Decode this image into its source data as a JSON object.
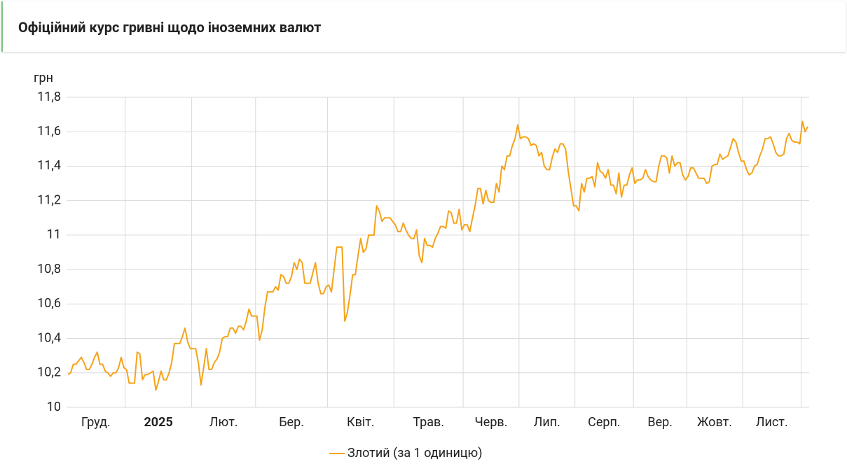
{
  "header": {
    "title": "Офіційний курс гривні щодо іноземних валют"
  },
  "chart_data": {
    "type": "line",
    "y_label": "грн",
    "categories": [
      "Груд.",
      "2025",
      "Лют.",
      "Бер.",
      "Квіт.",
      "Трав.",
      "Черв.",
      "Лип.",
      "Серп.",
      "Вер.",
      "Жовт.",
      "Лист.",
      null
    ],
    "ylim": [
      10,
      11.8
    ],
    "yticks": [
      10,
      {
        "value": 10.2,
        "label": "10,2"
      },
      {
        "value": 10.4,
        "label": "10,4"
      },
      {
        "value": 10.6,
        "label": "10,6"
      },
      {
        "value": 10.8,
        "label": "10,8"
      },
      11,
      {
        "value": 11.2,
        "label": "11,2"
      },
      {
        "value": 11.4,
        "label": "11,4"
      },
      {
        "value": 11.6,
        "label": "11,6"
      },
      {
        "value": 11.8,
        "label": "11,8"
      }
    ],
    "grid": true,
    "series": [
      {
        "name": "Злотий (за 1 одиницю)",
        "color": "#f5a31a",
        "values": [
          [
            10.19,
            10.2,
            10.25,
            10.25,
            10.27,
            10.29,
            10.26,
            10.22,
            10.22,
            10.25,
            10.29,
            10.32,
            10.25,
            10.25,
            10.21,
            10.2,
            10.18,
            10.2,
            10.2,
            10.23,
            10.29,
            10.23
          ],
          [
            10.22,
            10.14,
            10.14,
            10.14,
            10.32,
            10.31,
            10.16,
            10.19,
            10.19,
            10.2,
            10.21,
            10.1,
            10.15,
            10.21,
            10.16,
            10.16,
            10.2,
            10.26,
            10.37,
            10.37,
            10.37,
            10.41,
            10.46,
            10.38,
            10.34
          ],
          [
            10.34,
            10.34,
            10.26,
            10.13,
            10.23,
            10.34,
            10.22,
            10.22,
            10.26,
            10.28,
            10.32,
            10.4,
            10.41,
            10.41,
            10.46,
            10.46,
            10.43,
            10.47,
            10.47,
            10.45,
            10.5,
            10.57,
            10.53,
            10.53
          ],
          [
            10.53,
            10.39,
            10.45,
            10.58,
            10.67,
            10.67,
            10.67,
            10.7,
            10.68,
            10.77,
            10.76,
            10.72,
            10.72,
            10.76,
            10.84,
            10.8,
            10.86,
            10.84,
            10.72,
            10.72,
            10.72,
            10.78,
            10.84,
            10.72,
            10.66,
            10.66,
            10.7
          ],
          [
            10.71,
            10.67,
            10.8,
            10.93,
            10.93,
            10.93,
            10.5,
            10.55,
            10.65,
            10.77,
            10.77,
            10.88,
            10.98,
            10.9,
            10.92,
            11,
            11,
            11,
            11.17,
            11.14,
            11.08,
            11.1,
            11.1,
            11.1,
            11.08
          ],
          [
            11.06,
            11.02,
            11.02,
            11.07,
            11.03,
            11,
            10.98,
            10.98,
            11.03,
            10.88,
            10.84,
            10.98,
            10.94,
            10.94,
            10.93,
            10.98,
            11.01,
            11.05,
            11.05,
            11.04,
            11.14,
            11.13,
            11.07,
            11.07,
            11.15,
            11.03
          ],
          [
            11.06,
            11.06,
            11.02,
            11.1,
            11.17,
            11.27,
            11.27,
            11.18,
            11.26,
            11.2,
            11.19,
            11.19,
            11.3,
            11.25,
            11.4,
            11.38,
            11.46,
            11.46,
            11.52,
            11.56,
            11.64
          ],
          [
            11.56,
            11.57,
            11.57,
            11.56,
            11.52,
            11.53,
            11.52,
            11.46,
            11.48,
            11.4,
            11.38,
            11.38,
            11.45,
            11.5,
            11.48,
            11.53,
            11.53,
            11.5,
            11.37,
            11.27,
            11.17
          ],
          [
            11.17,
            11.14,
            11.3,
            11.25,
            11.33,
            11.33,
            11.34,
            11.28,
            11.42,
            11.37,
            11.36,
            11.33,
            11.38,
            11.29,
            11.29,
            11.24,
            11.36,
            11.22,
            11.29,
            11.29,
            11.35,
            11.39
          ],
          [
            11.3,
            11.32,
            11.32,
            11.33,
            11.38,
            11.34,
            11.32,
            11.31,
            11.31,
            11.4,
            11.46,
            11.46,
            11.45,
            11.36,
            11.46,
            11.4,
            11.42,
            11.42,
            11.35,
            11.32
          ],
          [
            11.34,
            11.39,
            11.39,
            11.36,
            11.33,
            11.33,
            11.33,
            11.3,
            11.31,
            11.4,
            11.41,
            11.41,
            11.47,
            11.44,
            11.45,
            11.46,
            11.51,
            11.56,
            11.54,
            11.48,
            11.43
          ],
          [
            11.43,
            11.38,
            11.35,
            11.36,
            11.4,
            11.41,
            11.46,
            11.5,
            11.56,
            11.56,
            11.57,
            11.53,
            11.48,
            11.46,
            11.46,
            11.47,
            11.56,
            11.59,
            11.55,
            11.54,
            11.54,
            11.53
          ],
          [
            11.66,
            11.6,
            11.63
          ]
        ]
      }
    ]
  }
}
